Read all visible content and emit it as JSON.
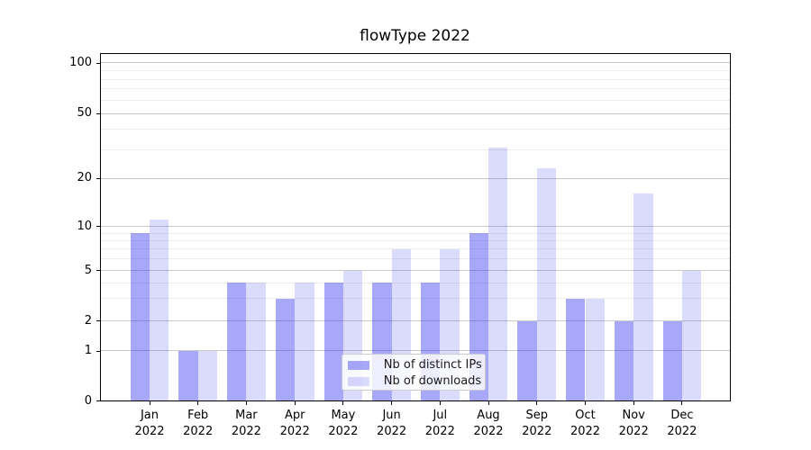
{
  "chart_data": {
    "type": "bar",
    "title": "flowType 2022",
    "categories": [
      "Jan",
      "Feb",
      "Mar",
      "Apr",
      "May",
      "Jun",
      "Jul",
      "Aug",
      "Sep",
      "Oct",
      "Nov",
      "Dec"
    ],
    "category_year_line": "2022",
    "series": [
      {
        "name": "Nb of distinct IPs",
        "fill": "rgba(38,38,238,0.40)",
        "apparent_color": "#a8a8f8",
        "values": [
          9,
          1,
          4,
          3,
          4,
          4,
          4,
          9,
          2,
          3,
          2,
          2
        ]
      },
      {
        "name": "Nb of downloads",
        "fill": "rgba(38,38,238,0.165)",
        "apparent_color": "#dbdbfc",
        "values": [
          11,
          1,
          4,
          4,
          5,
          7,
          7,
          31,
          23,
          3,
          16,
          5
        ]
      }
    ],
    "y_axis": {
      "scale": "symlog",
      "ticks": [
        0,
        1,
        2,
        5,
        10,
        20,
        50,
        100
      ],
      "minor_gridlines": [
        3,
        4,
        6,
        7,
        8,
        9,
        30,
        40,
        60,
        70,
        80,
        90
      ],
      "range": [
        0,
        115
      ]
    },
    "x_axis": {
      "two_line_labels": true
    },
    "legend": {
      "position": "lower center",
      "entries": [
        "Nb of distinct IPs",
        "Nb of downloads"
      ]
    },
    "grid": {
      "enabled": true,
      "major_color": "#c9c9c9",
      "minor_color": "#ededed"
    }
  }
}
